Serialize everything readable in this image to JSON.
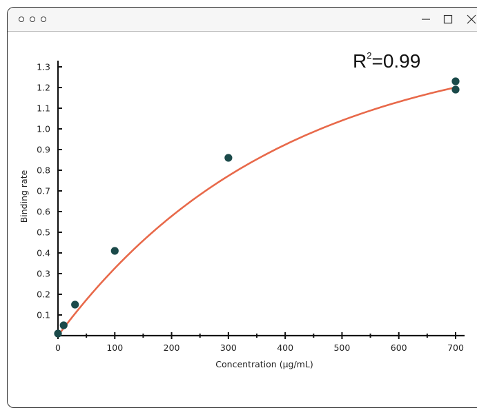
{
  "window": {
    "controls": {
      "traffic_lights": [
        "dot",
        "dot",
        "dot"
      ],
      "minimize_icon": "minimize-icon",
      "maximize_icon": "maximize-icon",
      "close_icon": "close-icon"
    }
  },
  "colors": {
    "curve": "#e8694a",
    "points": "#1b4a4a",
    "axis": "#111111",
    "text": "#222222"
  },
  "chart_data": {
    "type": "scatter",
    "title": "",
    "annotation": {
      "prefix": "R",
      "superscript": "2",
      "suffix": "=0.99"
    },
    "xlabel": "Concentration (µg/mL)",
    "ylabel": "Binding rate",
    "xlim": [
      0,
      700
    ],
    "ylim": [
      0,
      1.3
    ],
    "xticks": [
      0,
      100,
      200,
      300,
      400,
      500,
      600,
      700
    ],
    "yticks": [
      0.1,
      0.2,
      0.3,
      0.4,
      0.5,
      0.6,
      0.7,
      0.8,
      0.9,
      1.0,
      1.1,
      1.2,
      1.3
    ],
    "ytick_labels": [
      "0.1",
      "0.2",
      "0.3",
      "0.4",
      "0.5",
      "0.6",
      "0.7",
      "0.8",
      "0.9",
      "1.0",
      "1.1",
      "1.2",
      "1.3"
    ],
    "grid": false,
    "series": [
      {
        "type": "scatter",
        "x": [
          0,
          10,
          30,
          100,
          300,
          700,
          700
        ],
        "y": [
          0.01,
          0.05,
          0.15,
          0.41,
          0.86,
          1.23,
          1.19
        ]
      },
      {
        "type": "line",
        "fit": "1.44*(1-exp(-x/390))"
      }
    ]
  }
}
